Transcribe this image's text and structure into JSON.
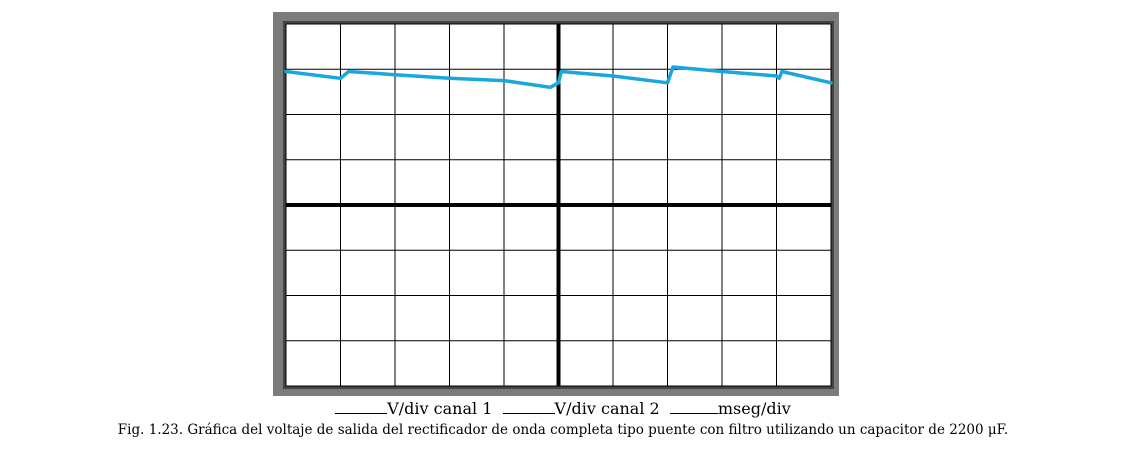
{
  "chart_data": {
    "type": "line",
    "title": "",
    "xlabel": "",
    "ylabel": "",
    "divisions": {
      "x": 10,
      "y": 8
    },
    "xlim": [
      0,
      10
    ],
    "ylim": [
      -4,
      4
    ],
    "grid": true,
    "colors": {
      "trace": "#1aa7e0",
      "frame_outer": "#7b7b7b",
      "frame_inner": "#444444",
      "grid": "#000000"
    },
    "series": [
      {
        "x": [
          0,
          1.0,
          1.1,
          1.15,
          2.0,
          3.0,
          4.0,
          4.85,
          5.0,
          5.05,
          6.0,
          7.0,
          7.0,
          7.1,
          8.0,
          9.0,
          9.05,
          9.1,
          10.0
        ],
        "y": [
          2.95,
          2.8,
          2.9,
          2.95,
          2.88,
          2.8,
          2.75,
          2.6,
          2.7,
          2.95,
          2.85,
          2.7,
          2.7,
          3.05,
          2.95,
          2.85,
          2.8,
          2.95,
          2.7
        ]
      }
    ]
  },
  "scale_fields": [
    {
      "label": "V/div canal 1"
    },
    {
      "label": "V/div canal 2"
    },
    {
      "label": "mseg/div"
    }
  ],
  "caption": "Fig. 1.23. Gráfica del voltaje de salida del rectificador de onda completa tipo puente con filtro utilizando un capacitor de 2200 μF."
}
